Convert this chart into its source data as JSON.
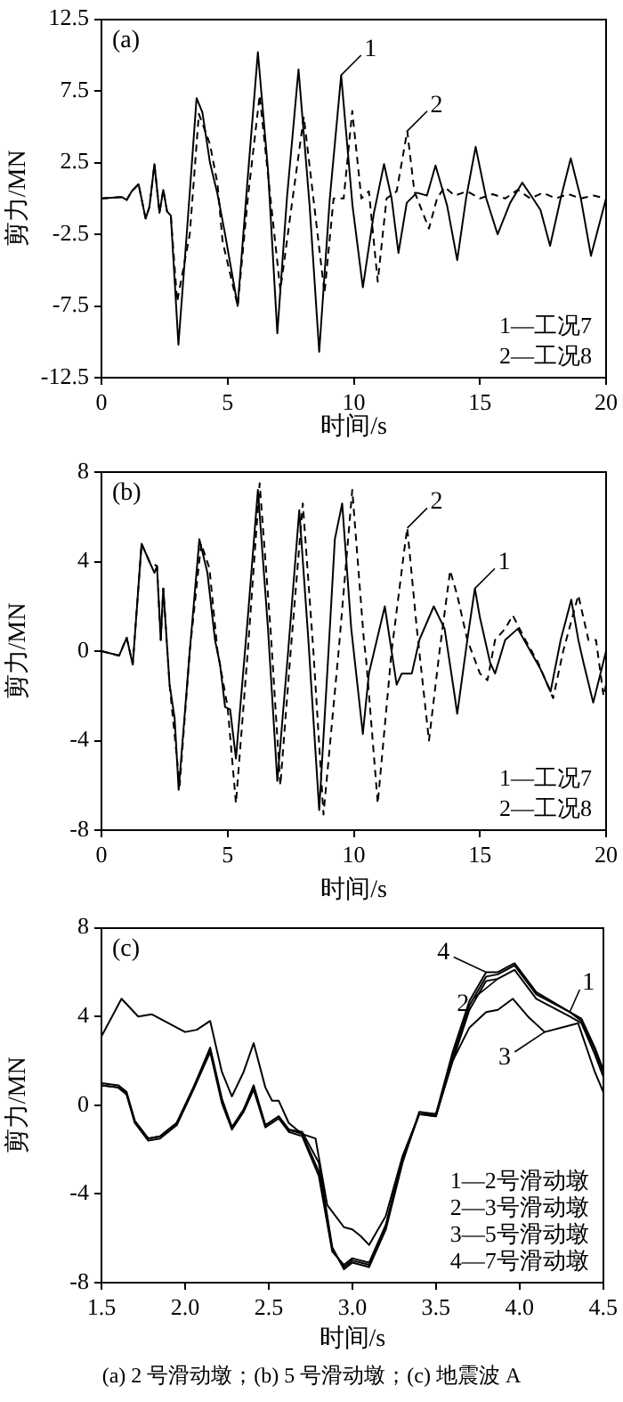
{
  "chart_data": [
    {
      "type": "line",
      "title": "(a)",
      "xlabel": "时间/s",
      "ylabel": "剪力/MN",
      "xlim": [
        0,
        20
      ],
      "xticks": [
        0,
        5,
        10,
        15,
        20
      ],
      "ylim": [
        -12.5,
        12.5
      ],
      "yticks": [
        -12.5,
        -7.5,
        -2.5,
        2.5,
        7.5,
        12.5
      ],
      "marker": "none",
      "series": [
        {
          "color": "#000000",
          "line_style": "solid",
          "x": [
            0,
            0.8,
            1.0,
            1.2,
            1.47,
            1.75,
            1.9,
            2.1,
            2.3,
            2.45,
            2.6,
            2.75,
            3.05,
            3.4,
            3.77,
            4.0,
            4.3,
            4.6,
            4.9,
            5.4,
            5.8,
            6.2,
            6.6,
            6.97,
            7.35,
            7.81,
            8.25,
            8.63,
            9.05,
            9.5,
            9.95,
            10.36,
            10.8,
            11.2,
            11.5,
            11.77,
            12.1,
            12.5,
            12.9,
            13.24,
            13.7,
            14.1,
            14.45,
            14.83,
            15.25,
            15.7,
            16.2,
            16.68,
            17.1,
            17.4,
            17.78,
            18.2,
            18.6,
            19.0,
            19.4,
            20
          ],
          "values": [
            0,
            0.1,
            -0.1,
            0.5,
            1.0,
            -1.4,
            -0.6,
            2.4,
            -1.0,
            0.6,
            -0.9,
            -1.2,
            -10.2,
            -2.0,
            7.0,
            6.0,
            2.5,
            0.3,
            -2.5,
            -7.5,
            1.5,
            10.2,
            2.0,
            -9.4,
            0,
            9.0,
            -0.5,
            -10.7,
            0,
            8.6,
            -0.5,
            -6.2,
            -1.0,
            2.4,
            0,
            -3.8,
            -0.3,
            0.4,
            0.2,
            2.3,
            -0.5,
            -4.3,
            0,
            3.6,
            0,
            -2.5,
            -0.3,
            1.1,
            0,
            -0.8,
            -3.3,
            0,
            2.8,
            0,
            -4.0,
            0
          ]
        },
        {
          "color": "#000000",
          "line_style": "dashed",
          "x": [
            0,
            0.8,
            1.0,
            1.2,
            1.47,
            1.75,
            1.9,
            2.1,
            2.3,
            2.45,
            2.6,
            2.75,
            3.0,
            3.5,
            3.86,
            4.3,
            4.6,
            4.8,
            5.4,
            5.8,
            6.27,
            6.7,
            7.09,
            7.5,
            8.02,
            8.4,
            8.84,
            9.2,
            9.6,
            9.94,
            10.3,
            10.6,
            10.95,
            11.3,
            11.7,
            12.12,
            12.4,
            12.98,
            13.3,
            13.6,
            14.0,
            14.5,
            15.0,
            15.5,
            16.0,
            16.5,
            17.0,
            17.5,
            18.0,
            18.5,
            19.0,
            19.5,
            20
          ],
          "values": [
            0,
            0.1,
            -0.1,
            0.5,
            1.0,
            -1.4,
            -0.6,
            2.4,
            -1.0,
            0.6,
            -0.9,
            -1.2,
            -7.2,
            -2.5,
            5.9,
            3.8,
            1.0,
            -3.0,
            -7.5,
            0,
            7.2,
            0,
            -6.4,
            -1.0,
            5.7,
            0,
            -6.6,
            0,
            0,
            6.1,
            0,
            0.5,
            -5.8,
            0,
            0.5,
            4.7,
            0.5,
            -2.1,
            0,
            0.8,
            0.2,
            0.5,
            0,
            0.3,
            0,
            0.6,
            0,
            0.4,
            0,
            0.3,
            0,
            0.2,
            0
          ]
        }
      ],
      "annotations": [
        {
          "text": "1",
          "x": 9.5,
          "y": 8.6
        },
        {
          "text": "2",
          "x": 12.12,
          "y": 4.7
        },
        "1—工况7",
        "2—工况8"
      ]
    },
    {
      "type": "line",
      "title": "(b)",
      "xlabel": "时间/s",
      "ylabel": "剪力/MN",
      "xlim": [
        0,
        20
      ],
      "xticks": [
        0,
        5,
        10,
        15,
        20
      ],
      "ylim": [
        -8,
        8
      ],
      "yticks": [
        -8,
        -4,
        0,
        4,
        8
      ],
      "marker": "none",
      "series": [
        {
          "color": "#000000",
          "line_style": "solid",
          "x": [
            0,
            0.7,
            1.0,
            1.24,
            1.59,
            1.9,
            2.1,
            2.2,
            2.35,
            2.45,
            2.7,
            2.9,
            3.06,
            3.5,
            3.88,
            4.2,
            4.5,
            4.7,
            4.9,
            5.1,
            5.33,
            5.8,
            6.2,
            6.6,
            6.97,
            7.4,
            7.84,
            8.2,
            8.63,
            9.0,
            9.25,
            9.54,
            9.9,
            10.36,
            10.6,
            11.23,
            11.7,
            11.9,
            12.3,
            12.6,
            13.17,
            13.6,
            14.0,
            14.1,
            14.5,
            14.8,
            15.0,
            15.4,
            15.6,
            16.0,
            16.5,
            17.0,
            17.4,
            17.8,
            18.2,
            18.62,
            18.9,
            19.1,
            19.49,
            20
          ],
          "values": [
            0,
            -0.2,
            0.6,
            -0.6,
            4.8,
            4.0,
            3.5,
            3.8,
            0.5,
            2.8,
            -1.5,
            -3.0,
            -6.2,
            0,
            5.0,
            3.5,
            0.5,
            -0.6,
            -2.5,
            -2.6,
            -4.8,
            1.5,
            7.2,
            1.0,
            -5.8,
            0,
            6.3,
            0.5,
            -7.1,
            0,
            5.0,
            6.6,
            1.0,
            -3.7,
            -1.0,
            2.0,
            -1.5,
            -1.0,
            -1.0,
            0.5,
            2.0,
            1.0,
            -2.0,
            -2.8,
            0.5,
            2.8,
            1.5,
            -0.5,
            -1.0,
            0.5,
            1.0,
            0,
            -0.8,
            -1.8,
            0.5,
            2.3,
            0.5,
            -0.5,
            -2.3,
            0
          ]
        },
        {
          "color": "#000000",
          "line_style": "dashed",
          "x": [
            0,
            0.7,
            1.0,
            1.24,
            1.59,
            1.9,
            2.2,
            2.35,
            2.45,
            2.7,
            3.1,
            3.5,
            3.95,
            4.28,
            4.6,
            5.0,
            5.33,
            5.8,
            6.27,
            6.7,
            7.09,
            7.5,
            7.98,
            8.4,
            8.8,
            9.4,
            9.94,
            10.4,
            10.5,
            10.95,
            11.5,
            12.0,
            12.12,
            12.5,
            12.98,
            13.4,
            13.82,
            14.1,
            14.5,
            15.0,
            15.3,
            15.6,
            16.0,
            16.3,
            16.8,
            17.3,
            17.9,
            18.3,
            18.9,
            19.3,
            19.6,
            19.9,
            20
          ],
          "values": [
            0,
            -0.2,
            0.6,
            -0.6,
            4.8,
            4.0,
            3.8,
            0.5,
            2.8,
            -1.5,
            -6.0,
            0,
            4.8,
            3.7,
            0,
            -2.5,
            -6.8,
            0,
            7.5,
            1.0,
            -6.0,
            0,
            6.6,
            0,
            -7.3,
            0,
            7.2,
            0.5,
            -0.5,
            -6.8,
            0,
            4.5,
            5.5,
            1.0,
            -4.0,
            0,
            3.6,
            2.5,
            0.5,
            -1.0,
            -1.3,
            0.5,
            1.0,
            1.6,
            0.5,
            -0.5,
            -2.1,
            0,
            2.5,
            0.5,
            0.5,
            -2.0,
            -1.5
          ]
        }
      ],
      "annotations": [
        {
          "text": "2",
          "x": 12.12,
          "y": 5.5
        },
        {
          "text": "1",
          "x": 14.8,
          "y": 2.8
        },
        "1—工况7",
        "2—工况8"
      ]
    },
    {
      "type": "line",
      "title": "(c)",
      "xlabel": "时间/s",
      "ylabel": "剪力/MN",
      "xlim": [
        1.5,
        4.5
      ],
      "xticks": [
        1.5,
        {
          "value": 2,
          "label": "2.0"
        },
        2.5,
        {
          "value": 3,
          "label": "3.0"
        },
        3.5,
        {
          "value": 4,
          "label": "4.0"
        },
        4.5
      ],
      "ylim": [
        -8,
        8
      ],
      "yticks": [
        -8,
        -4,
        0,
        4,
        8
      ],
      "marker": "none",
      "series": [
        {
          "color": "#000000",
          "line_style": "solid",
          "x": [
            1.5,
            1.6,
            1.65,
            1.7,
            1.78,
            1.85,
            1.95,
            2.05,
            2.15,
            2.22,
            2.28,
            2.35,
            2.41,
            2.48,
            2.56,
            2.62,
            2.7,
            2.8,
            2.88,
            2.95,
            3.0,
            3.05,
            3.1,
            3.2,
            3.3,
            3.4,
            3.5,
            3.6,
            3.7,
            3.8,
            3.87,
            3.97,
            4.1,
            4.3,
            4.37,
            4.45,
            4.5
          ],
          "values": [
            0.9,
            0.8,
            0.5,
            -0.8,
            -1.5,
            -1.4,
            -0.8,
            0.8,
            2.5,
            0.2,
            -1.0,
            -0.2,
            0.8,
            -0.9,
            -0.5,
            -1.1,
            -1.3,
            -3.0,
            -6.5,
            -7.3,
            -7.0,
            -7.1,
            -7.2,
            -5.5,
            -2.5,
            -0.4,
            -0.5,
            2.2,
            4.5,
            5.8,
            5.9,
            6.3,
            5.0,
            4.2,
            3.8,
            2.5,
            1.5
          ]
        },
        {
          "color": "#000000",
          "line_style": "solid",
          "x": [
            1.5,
            1.6,
            1.65,
            1.7,
            1.78,
            1.85,
            1.95,
            2.05,
            2.15,
            2.22,
            2.28,
            2.35,
            2.41,
            2.48,
            2.56,
            2.62,
            2.7,
            2.8,
            2.88,
            2.95,
            3.0,
            3.05,
            3.1,
            3.2,
            3.3,
            3.4,
            3.5,
            3.6,
            3.7,
            3.8,
            3.87,
            3.97,
            4.1,
            4.3,
            4.37,
            4.45,
            4.5
          ],
          "values": [
            0.9,
            0.8,
            0.5,
            -0.8,
            -1.6,
            -1.5,
            -0.9,
            0.7,
            2.4,
            0.1,
            -1.1,
            -0.3,
            0.7,
            -1.0,
            -0.6,
            -1.2,
            -1.4,
            -3.2,
            -6.6,
            -7.2,
            -6.9,
            -7.0,
            -7.1,
            -5.4,
            -2.4,
            -0.4,
            -0.5,
            2.0,
            4.3,
            5.6,
            5.7,
            6.1,
            4.8,
            4.0,
            3.7,
            2.3,
            1.3
          ]
        },
        {
          "color": "#000000",
          "line_style": "solid",
          "x": [
            1.5,
            1.62,
            1.72,
            1.8,
            1.9,
            2.0,
            2.07,
            2.15,
            2.22,
            2.28,
            2.35,
            2.41,
            2.48,
            2.52,
            2.56,
            2.62,
            2.7,
            2.78,
            2.85,
            2.95,
            3.0,
            3.05,
            3.1,
            3.2,
            3.3,
            3.4,
            3.5,
            3.6,
            3.7,
            3.8,
            3.87,
            3.96,
            4.05,
            4.15,
            4.3,
            4.35,
            4.45,
            4.5
          ],
          "values": [
            3.1,
            4.8,
            4.0,
            4.1,
            3.7,
            3.3,
            3.4,
            3.8,
            1.5,
            0.4,
            1.5,
            2.8,
            0.8,
            0.2,
            0.2,
            -0.8,
            -1.3,
            -1.5,
            -4.5,
            -5.5,
            -5.6,
            -5.9,
            -6.3,
            -5.0,
            -2.3,
            -0.4,
            -0.4,
            2.0,
            3.5,
            4.2,
            4.3,
            4.8,
            4.0,
            3.3,
            3.6,
            3.7,
            1.5,
            0.6
          ]
        },
        {
          "color": "#000000",
          "line_style": "solid",
          "x": [
            1.5,
            1.6,
            1.65,
            1.7,
            1.78,
            1.85,
            1.95,
            2.05,
            2.15,
            2.22,
            2.28,
            2.35,
            2.41,
            2.48,
            2.56,
            2.62,
            2.7,
            2.8,
            2.88,
            2.95,
            3.0,
            3.05,
            3.1,
            3.2,
            3.3,
            3.4,
            3.5,
            3.6,
            3.7,
            3.8,
            3.87,
            3.97,
            4.1,
            4.3,
            4.37,
            4.45,
            4.5
          ],
          "values": [
            1.0,
            0.9,
            0.6,
            -0.7,
            -1.5,
            -1.4,
            -0.8,
            0.8,
            2.6,
            0.3,
            -1.0,
            -0.2,
            0.9,
            -0.9,
            -0.5,
            -1.1,
            -1.2,
            -2.6,
            -6.4,
            -7.4,
            -7.1,
            -7.2,
            -7.3,
            -5.6,
            -2.6,
            -0.3,
            -0.4,
            2.4,
            4.7,
            6.0,
            6.0,
            6.4,
            5.1,
            4.2,
            3.9,
            2.6,
            1.6
          ]
        }
      ],
      "annotations": [
        {
          "text": "4",
          "x": 3.8,
          "y": 6.0
        },
        {
          "text": "2",
          "x": 3.87,
          "y": 5.7
        },
        {
          "text": "1",
          "x": 4.3,
          "y": 4.2
        },
        {
          "text": "3",
          "x": 4.15,
          "y": 3.3
        },
        "1—2号滑动墩",
        "2—3号滑动墩",
        "3—5号滑动墩",
        "4—7号滑动墩"
      ]
    },
    {
      "type": "other",
      "annotations": [
        "(a) 2 号滑动墩；(b) 5 号滑动墩；(c) 地震波 A"
      ]
    }
  ]
}
